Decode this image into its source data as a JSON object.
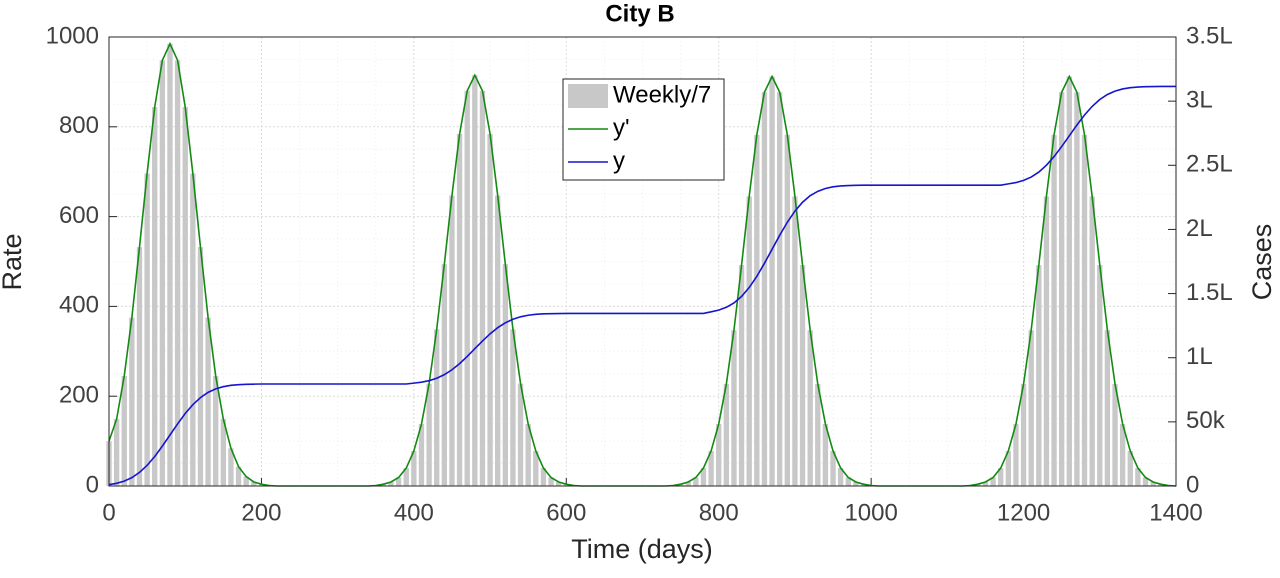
{
  "chart_data": {
    "type": "bar-line",
    "title": "City B",
    "xlabel": "Time (days)",
    "ylabel": "Rate",
    "y2label": "Cases",
    "xlim": [
      0,
      1400
    ],
    "xticks": [
      0,
      200,
      400,
      600,
      800,
      1000,
      1200,
      1400
    ],
    "ylim": [
      0,
      1000
    ],
    "yticks": [
      0,
      200,
      400,
      600,
      800,
      1000
    ],
    "y2lim": [
      0,
      350000
    ],
    "y2ticks": [
      0,
      {
        "value": 50000,
        "label": "50k"
      },
      {
        "value": 100000,
        "label": "1L"
      },
      {
        "value": 150000,
        "label": "1.5L"
      },
      {
        "value": 200000,
        "label": "2L"
      },
      {
        "value": 250000,
        "label": "2.5L"
      },
      {
        "value": 300000,
        "label": "3L"
      },
      {
        "value": 350000,
        "label": "3.5L"
      }
    ],
    "grid": true,
    "minor_grid": true,
    "legend_position": "top",
    "x": [
      0,
      10,
      20,
      30,
      40,
      50,
      60,
      70,
      80,
      90,
      100,
      110,
      120,
      130,
      140,
      150,
      160,
      170,
      180,
      190,
      200,
      210,
      220,
      230,
      240,
      250,
      260,
      270,
      280,
      290,
      300,
      310,
      320,
      330,
      340,
      350,
      360,
      370,
      380,
      390,
      400,
      410,
      420,
      430,
      440,
      450,
      460,
      470,
      480,
      490,
      500,
      510,
      520,
      530,
      540,
      550,
      560,
      570,
      580,
      590,
      600,
      610,
      620,
      630,
      640,
      650,
      660,
      670,
      680,
      690,
      700,
      710,
      720,
      730,
      740,
      750,
      760,
      770,
      780,
      790,
      800,
      810,
      820,
      830,
      840,
      850,
      860,
      870,
      880,
      890,
      900,
      910,
      920,
      930,
      940,
      950,
      960,
      970,
      980,
      990,
      1000,
      1010,
      1020,
      1030,
      1040,
      1050,
      1060,
      1070,
      1080,
      1090,
      1100,
      1110,
      1120,
      1130,
      1140,
      1150,
      1160,
      1170,
      1180,
      1190,
      1200,
      1210,
      1220,
      1230,
      1240,
      1250,
      1260,
      1270,
      1280,
      1290,
      1300,
      1310,
      1320,
      1330,
      1340,
      1350,
      1360,
      1370,
      1380,
      1390,
      1400
    ],
    "series": [
      {
        "name": "Weekly/7",
        "kind": "bar",
        "color": "#c8c8c8",
        "axis": "y",
        "values": [
          100,
          149,
          245,
          375,
          532,
          696,
          844,
          948,
          985,
          948,
          844,
          696,
          532,
          375,
          245,
          149,
          84,
          43,
          21,
          9,
          4,
          1,
          0,
          0,
          0,
          0,
          0,
          0,
          0,
          0,
          0,
          0,
          0,
          0,
          0,
          1,
          4,
          9,
          19,
          40,
          78,
          138,
          228,
          349,
          494,
          647,
          784,
          880,
          915,
          880,
          784,
          647,
          494,
          349,
          228,
          138,
          78,
          40,
          19,
          9,
          4,
          1,
          0,
          0,
          0,
          0,
          0,
          0,
          0,
          0,
          0,
          0,
          0,
          0,
          1,
          4,
          9,
          19,
          40,
          78,
          138,
          227,
          347,
          492,
          645,
          782,
          877,
          912,
          877,
          782,
          645,
          492,
          347,
          227,
          138,
          78,
          40,
          19,
          9,
          4,
          1,
          0,
          0,
          0,
          0,
          0,
          0,
          0,
          0,
          0,
          0,
          0,
          0,
          1,
          4,
          9,
          19,
          40,
          78,
          138,
          227,
          347,
          492,
          645,
          782,
          877,
          912,
          877,
          782,
          645,
          492,
          347,
          227,
          138,
          78,
          40,
          19,
          9,
          4,
          1,
          0
        ]
      },
      {
        "name": "y'",
        "kind": "line",
        "color": "#138a13",
        "axis": "y",
        "values": [
          100,
          149,
          245,
          375,
          532,
          696,
          844,
          948,
          985,
          948,
          844,
          696,
          532,
          375,
          245,
          149,
          84,
          43,
          21,
          9,
          4,
          1,
          0,
          0,
          0,
          0,
          0,
          0,
          0,
          0,
          0,
          0,
          0,
          0,
          0,
          1,
          4,
          9,
          19,
          40,
          78,
          138,
          228,
          349,
          494,
          647,
          784,
          880,
          915,
          880,
          784,
          647,
          494,
          349,
          228,
          138,
          78,
          40,
          19,
          9,
          4,
          1,
          0,
          0,
          0,
          0,
          0,
          0,
          0,
          0,
          0,
          0,
          0,
          0,
          1,
          4,
          9,
          19,
          40,
          78,
          138,
          227,
          347,
          492,
          645,
          782,
          877,
          912,
          877,
          782,
          645,
          492,
          347,
          227,
          138,
          78,
          40,
          19,
          9,
          4,
          1,
          0,
          0,
          0,
          0,
          0,
          0,
          0,
          0,
          0,
          0,
          0,
          0,
          1,
          4,
          9,
          19,
          40,
          78,
          138,
          227,
          347,
          492,
          645,
          782,
          877,
          912,
          877,
          782,
          645,
          492,
          347,
          227,
          138,
          78,
          40,
          19,
          9,
          4,
          1,
          0
        ]
      },
      {
        "name": "y",
        "kind": "line",
        "color": "#1515d0",
        "axis": "y2",
        "values": [
          1000,
          2100,
          3800,
          6500,
          10600,
          16100,
          23000,
          31100,
          39750,
          48400,
          56500,
          63400,
          68900,
          73000,
          75700,
          77400,
          78500,
          79000,
          79300,
          79400,
          79500,
          79500,
          79500,
          79500,
          79500,
          79500,
          79500,
          79500,
          79500,
          79500,
          79500,
          79500,
          79500,
          79500,
          79500,
          79500,
          79500,
          79500,
          79500,
          79500,
          80200,
          80900,
          82100,
          84000,
          86800,
          90600,
          95400,
          101000,
          107000,
          113000,
          118600,
          123400,
          127200,
          130000,
          131900,
          133100,
          133800,
          134200,
          134300,
          134400,
          134500,
          134500,
          134500,
          134500,
          134500,
          134500,
          134500,
          134500,
          134500,
          134500,
          134500,
          134500,
          134500,
          134500,
          134500,
          134500,
          134500,
          134500,
          134500,
          135800,
          137100,
          139300,
          142700,
          147800,
          154700,
          163400,
          173600,
          184500,
          195400,
          205600,
          214300,
          221200,
          226300,
          229700,
          231900,
          233200,
          233900,
          234200,
          234400,
          234500,
          234500,
          234500,
          234500,
          234500,
          234500,
          234500,
          234500,
          234500,
          234500,
          234500,
          234500,
          234500,
          234500,
          234500,
          234500,
          234500,
          234500,
          234500,
          235500,
          236500,
          238200,
          240800,
          244700,
          250100,
          256800,
          264600,
          273000,
          281400,
          289200,
          295900,
          301300,
          305200,
          307800,
          309500,
          310500,
          311000,
          311300,
          311400,
          311500,
          311500,
          311500
        ]
      }
    ]
  }
}
